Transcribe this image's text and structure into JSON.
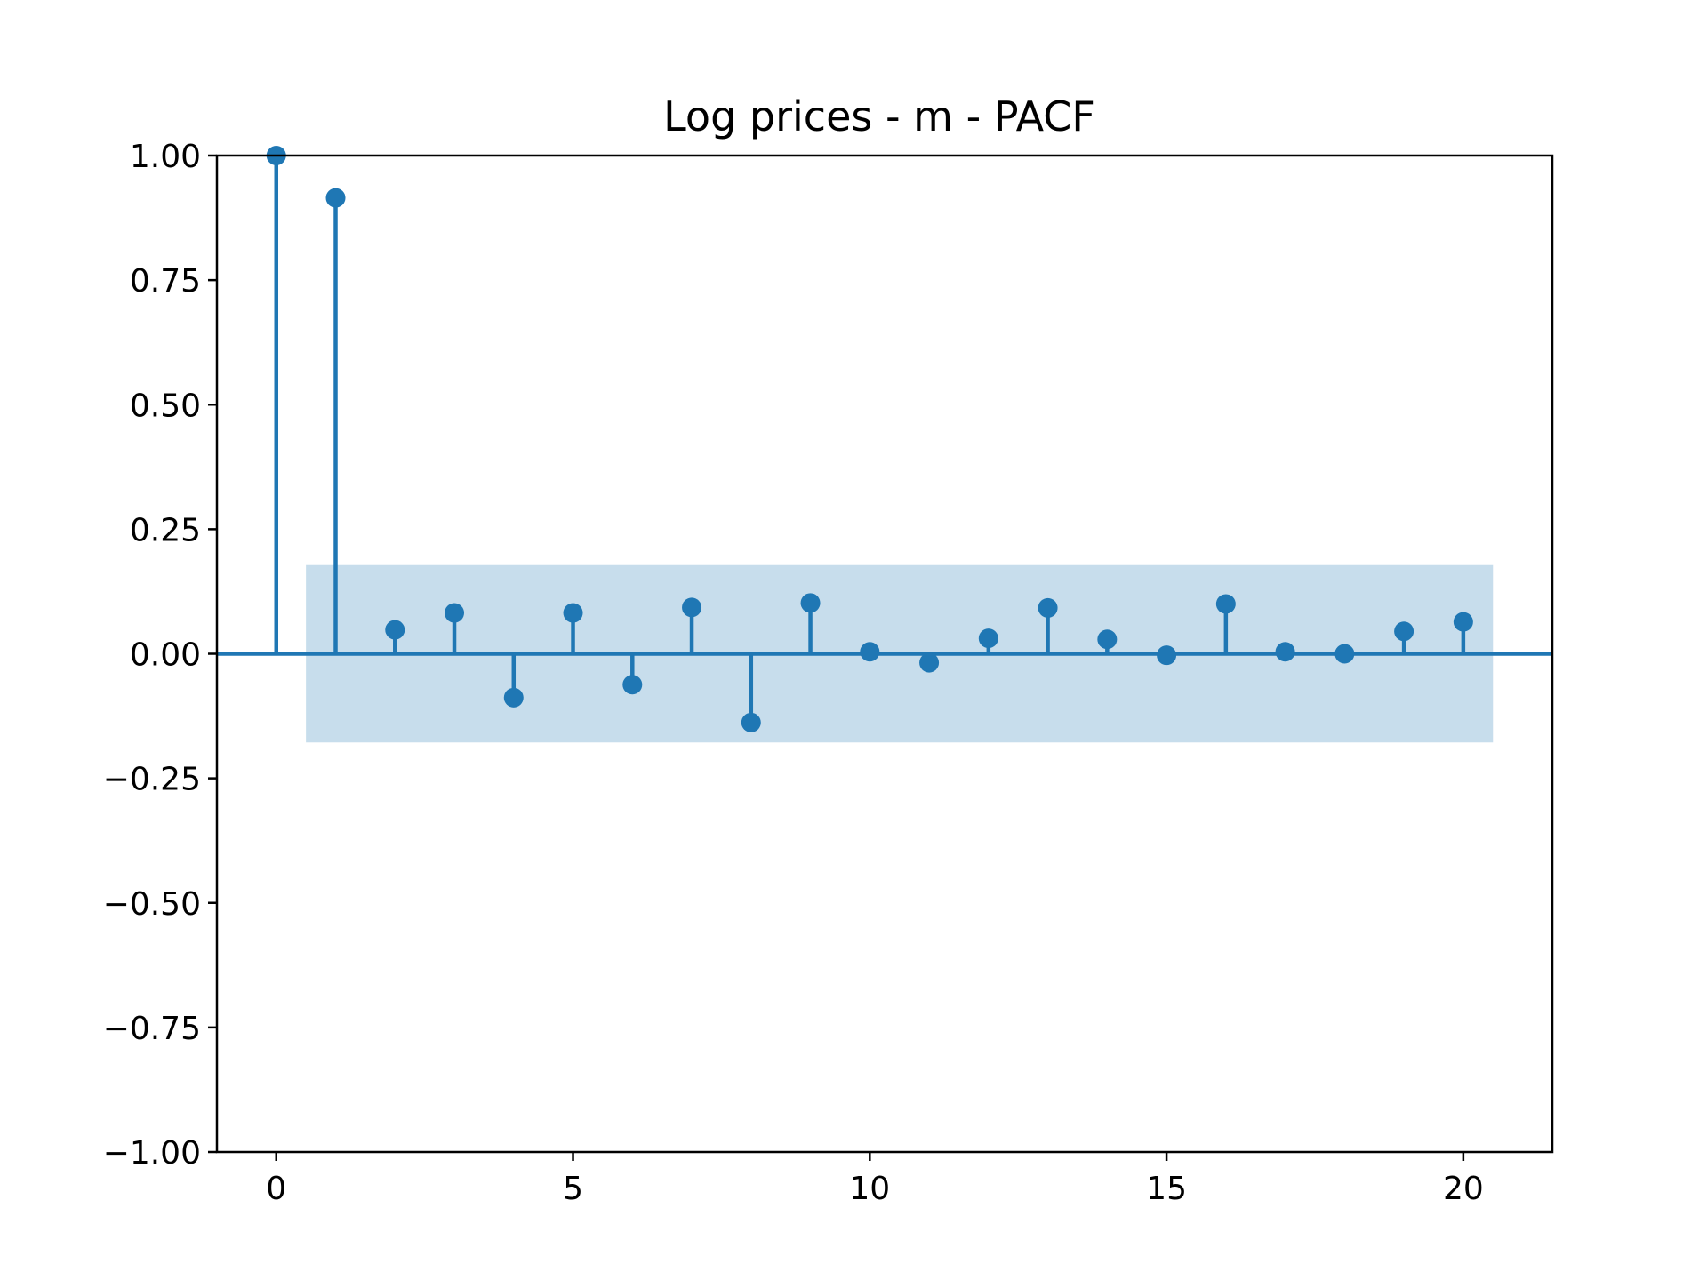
{
  "chart_data": {
    "type": "stem",
    "title": "Log prices - m - PACF",
    "xlabel": "",
    "ylabel": "",
    "xlim": [
      -1,
      21.5
    ],
    "ylim": [
      -1.0,
      1.0
    ],
    "x_ticks": [
      0,
      5,
      10,
      15,
      20
    ],
    "x_tick_labels": [
      "0",
      "5",
      "10",
      "15",
      "20"
    ],
    "y_ticks": [
      1.0,
      0.75,
      0.5,
      0.25,
      0.0,
      -0.25,
      -0.5,
      -0.75,
      -1.0
    ],
    "y_tick_labels": [
      "1.00",
      "0.75",
      "0.50",
      "0.25",
      "0.00",
      "−0.25",
      "−0.50",
      "−0.75",
      "−1.00"
    ],
    "grid": false,
    "series": [
      {
        "lags": [
          0,
          1,
          2,
          3,
          4,
          5,
          6,
          7,
          8,
          9,
          10,
          11,
          12,
          13,
          14,
          15,
          16,
          17,
          18,
          19,
          20
        ],
        "values": [
          1.0,
          0.915,
          0.048,
          0.082,
          -0.088,
          0.082,
          -0.062,
          0.093,
          -0.138,
          0.102,
          0.004,
          -0.018,
          0.031,
          0.092,
          0.029,
          -0.003,
          0.1,
          0.004,
          0.0,
          0.045,
          0.064
        ]
      }
    ],
    "confidence_band": {
      "x_range": [
        0.5,
        20.5
      ],
      "lower": -0.178,
      "upper": 0.178
    },
    "colors": {
      "series": "#1f77b4",
      "band": "#1f77b4",
      "band_opacity": 0.25
    }
  }
}
